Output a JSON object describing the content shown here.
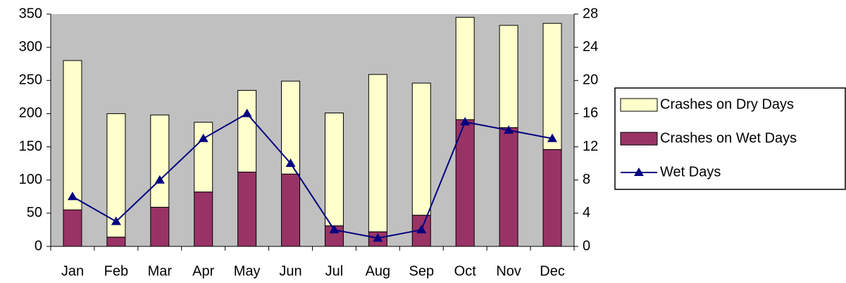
{
  "chart_data": {
    "type": "bar",
    "categories": [
      "Jan",
      "Feb",
      "Mar",
      "Apr",
      "May",
      "Jun",
      "Jul",
      "Aug",
      "Sep",
      "Oct",
      "Nov",
      "Dec"
    ],
    "series": [
      {
        "name": "Crashes on Dry Days",
        "type": "bar",
        "color": "#ffffcc",
        "values": [
          225,
          186,
          139,
          105,
          123,
          140,
          170,
          237,
          199,
          154,
          154,
          190
        ]
      },
      {
        "name": "Crashes on Wet Days",
        "type": "bar",
        "color": "#993366",
        "values": [
          55,
          14,
          59,
          82,
          112,
          109,
          31,
          22,
          47,
          191,
          179,
          146
        ]
      },
      {
        "name": "Wet Days",
        "type": "line",
        "axis": "y2",
        "color": "#000080",
        "values": [
          6,
          3,
          8,
          13,
          16,
          10,
          2,
          1,
          2,
          15,
          14,
          13
        ]
      }
    ],
    "stacked": true,
    "ylim": [
      0,
      350
    ],
    "yticks": [
      0,
      50,
      100,
      150,
      200,
      250,
      300,
      350
    ],
    "y2lim": [
      0,
      28
    ],
    "y2ticks": [
      0,
      4,
      8,
      12,
      16,
      20,
      24,
      28
    ],
    "legend": "right"
  }
}
